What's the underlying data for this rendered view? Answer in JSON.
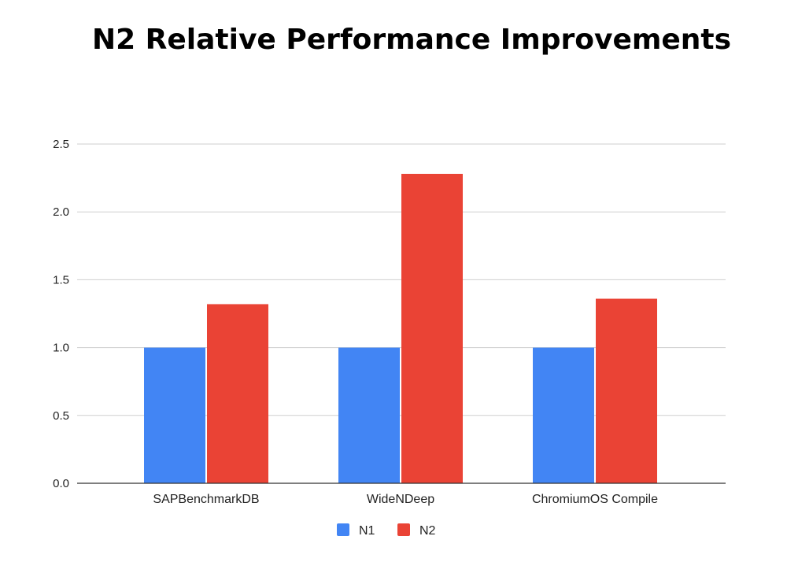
{
  "chart_data": {
    "type": "bar",
    "title": "N2 Relative Performance Improvements",
    "xlabel": "",
    "ylabel": "",
    "categories": [
      "SAPBenchmarkDB",
      "WideNDeep",
      "ChromiumOS Compile"
    ],
    "series": [
      {
        "name": "N1",
        "color": "#4285f4",
        "values": [
          1.0,
          1.0,
          1.0
        ]
      },
      {
        "name": "N2",
        "color": "#ea4335",
        "values": [
          1.32,
          2.28,
          1.36
        ]
      }
    ],
    "ylim": [
      0,
      2.5
    ],
    "yticks": [
      "0.0",
      "0.5",
      "1.0",
      "1.5",
      "2.0",
      "2.5"
    ],
    "ytick_values": [
      0,
      0.5,
      1.0,
      1.5,
      2.0,
      2.5
    ],
    "grid": true,
    "legend_position": "bottom"
  }
}
